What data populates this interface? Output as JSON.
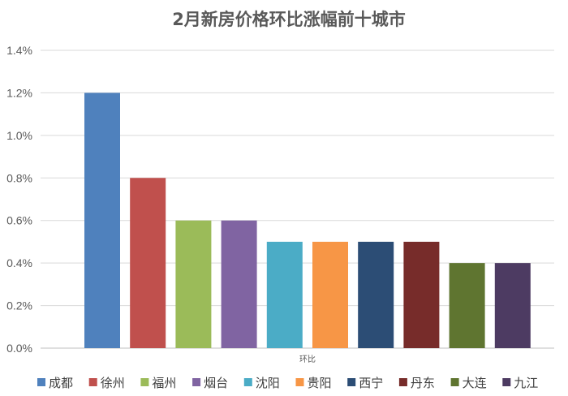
{
  "chart_data": {
    "type": "bar",
    "title": "2月新房价格环比涨幅前十城市",
    "xlabel": "环比",
    "ylabel": "",
    "ylim": [
      0,
      1.4
    ],
    "ytick_values": [
      0,
      0.2,
      0.4,
      0.6,
      0.8,
      1.0,
      1.2,
      1.4
    ],
    "ytick_labels": [
      "0.0%",
      "0.2%",
      "0.4%",
      "0.6%",
      "0.8%",
      "1.0%",
      "1.2%",
      "1.4%"
    ],
    "grid": true,
    "legend_position": "bottom",
    "series": [
      {
        "name": "成都",
        "value": 1.2,
        "color": "#4F81BD"
      },
      {
        "name": "徐州",
        "value": 0.8,
        "color": "#C0504D"
      },
      {
        "name": "福州",
        "value": 0.6,
        "color": "#9BBB59"
      },
      {
        "name": "烟台",
        "value": 0.6,
        "color": "#8064A2"
      },
      {
        "name": "沈阳",
        "value": 0.5,
        "color": "#4BACC6"
      },
      {
        "name": "贵阳",
        "value": 0.5,
        "color": "#F79646"
      },
      {
        "name": "西宁",
        "value": 0.5,
        "color": "#2C4D75"
      },
      {
        "name": "丹东",
        "value": 0.5,
        "color": "#772C2A"
      },
      {
        "name": "大连",
        "value": 0.4,
        "color": "#5F7530"
      },
      {
        "name": "九江",
        "value": 0.4,
        "color": "#4D3B62"
      }
    ]
  }
}
